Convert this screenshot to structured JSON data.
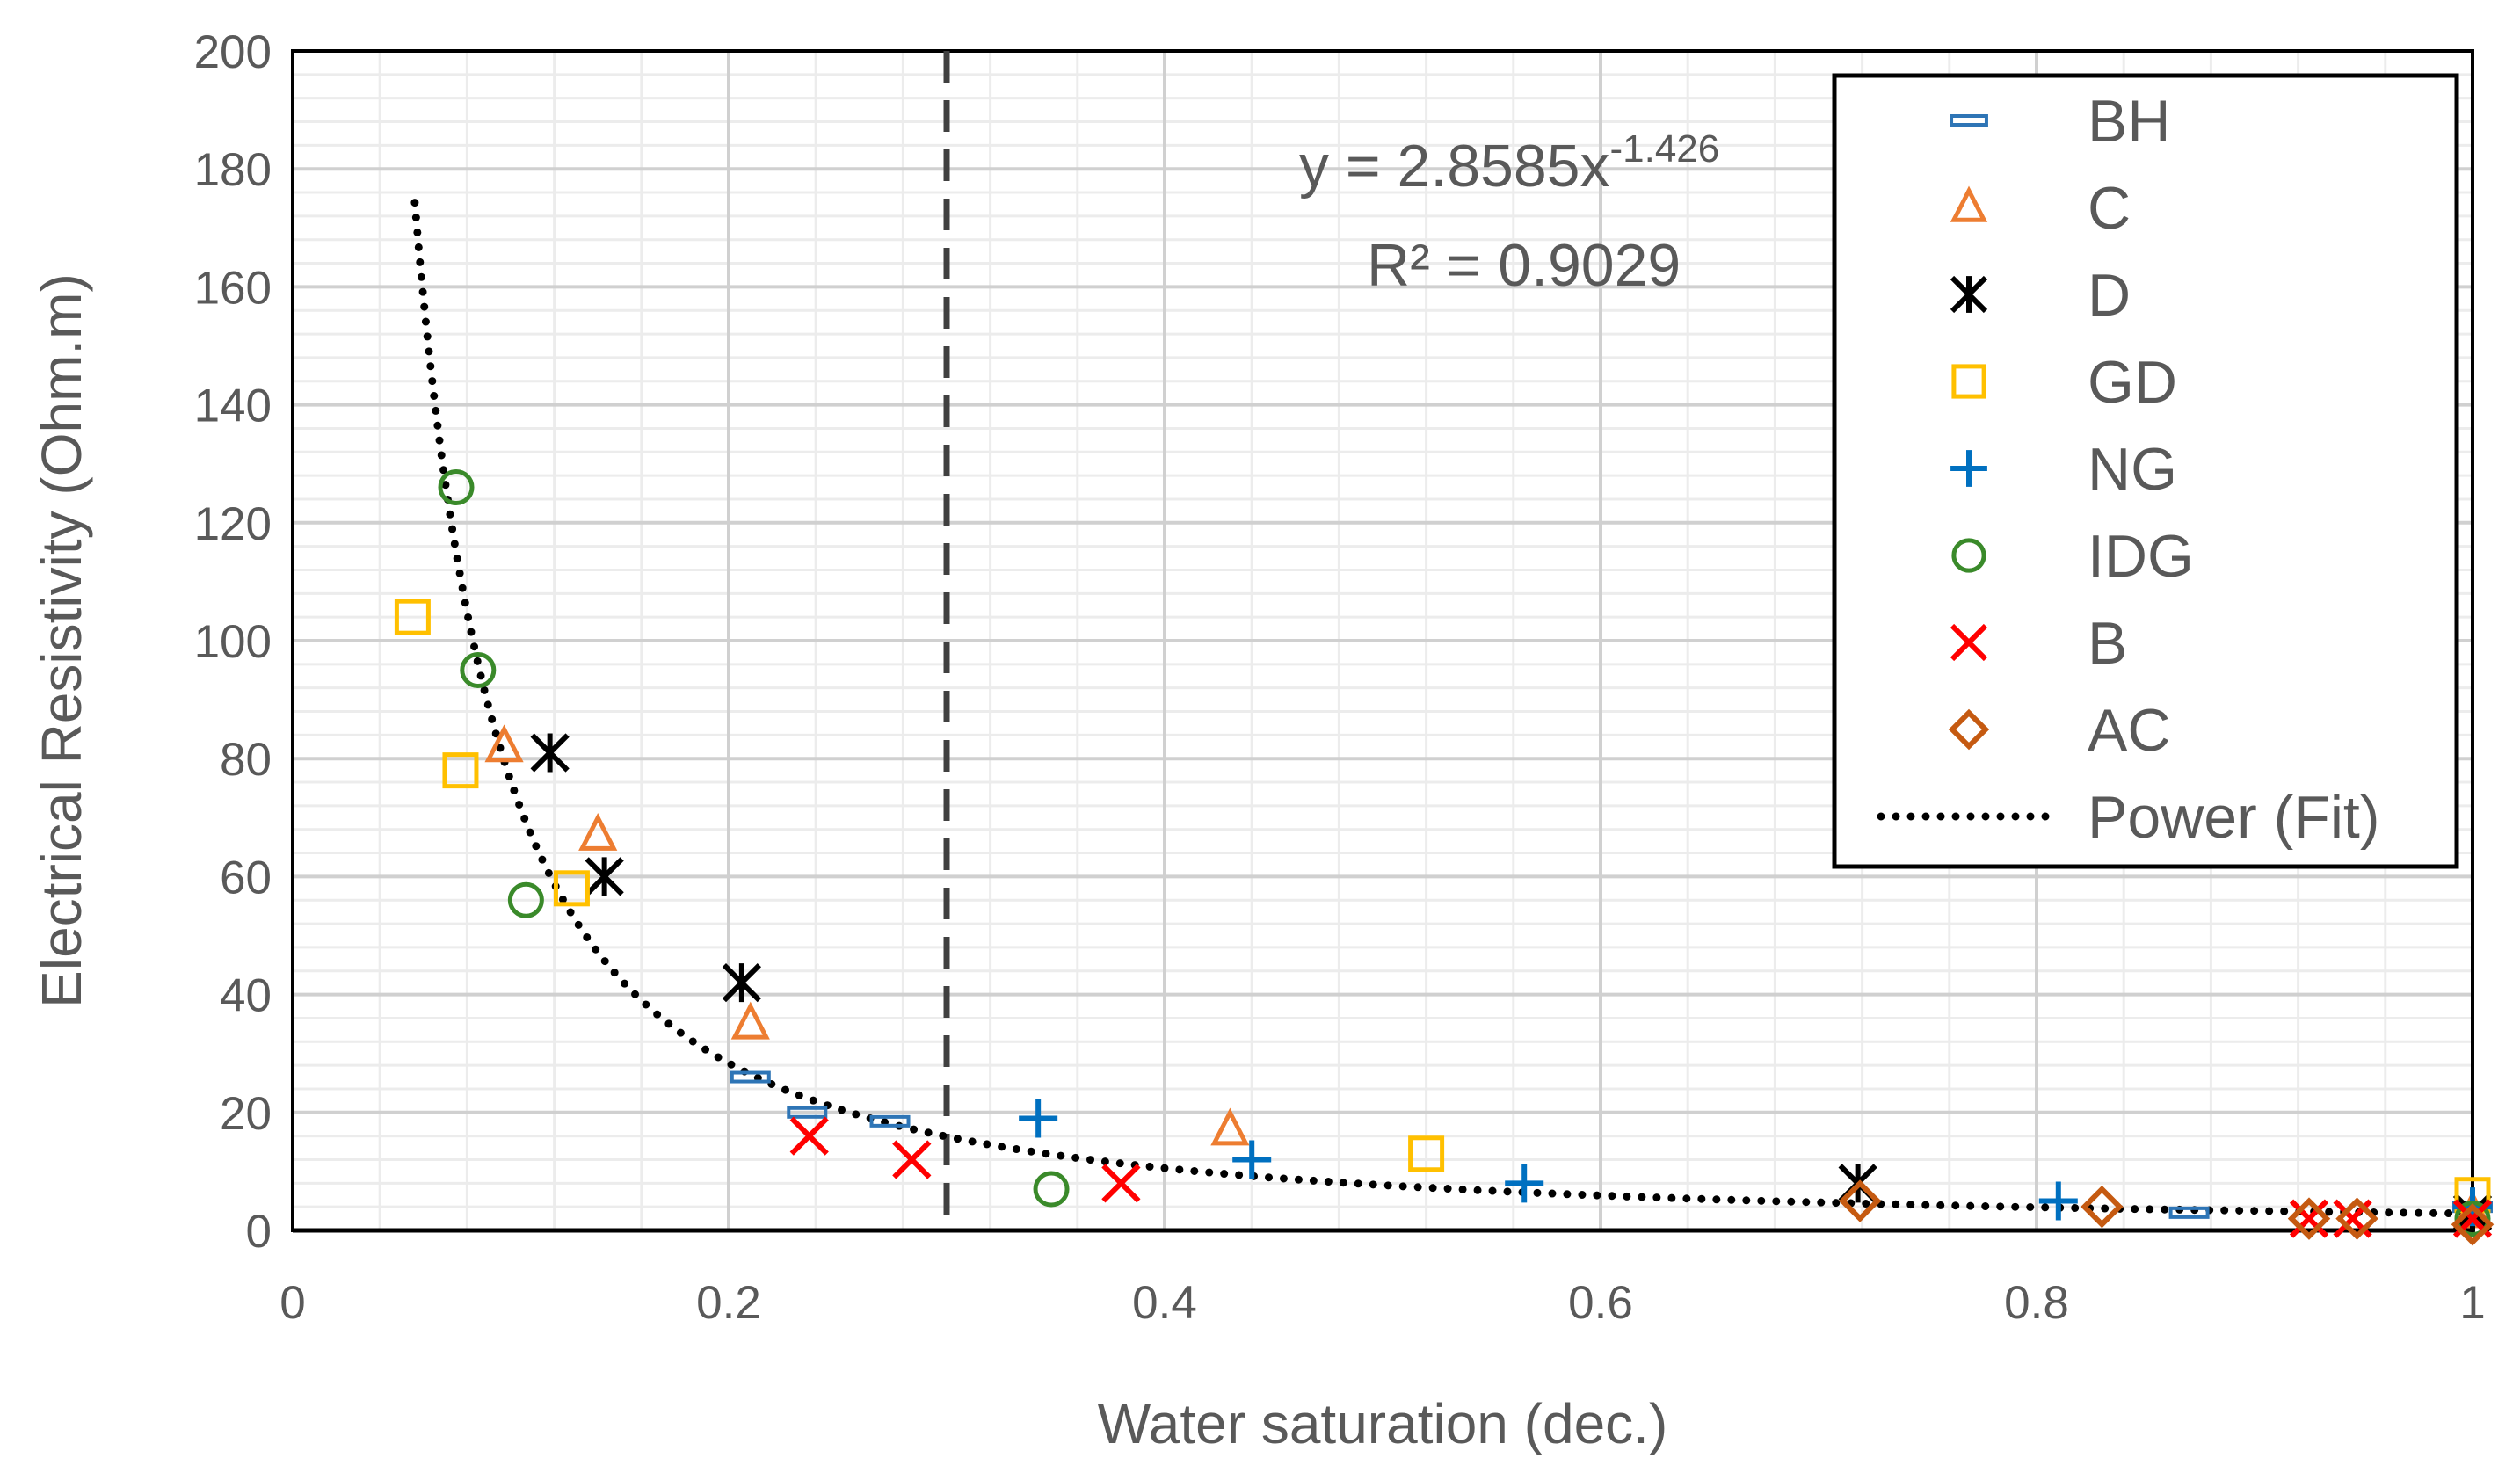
{
  "chart_data": {
    "type": "scatter",
    "title": "",
    "xlabel": "Water saturation (dec.)",
    "ylabel": "Electrical Resistivity (Ohm.m)",
    "xlim": [
      0,
      1
    ],
    "ylim": [
      0,
      200
    ],
    "x_ticks": [
      0,
      0.2,
      0.4,
      0.6,
      0.8,
      1
    ],
    "x_tick_labels": [
      "0",
      "0.2",
      "0.4",
      "0.6",
      "0.8",
      "1"
    ],
    "y_ticks": [
      0,
      20,
      40,
      60,
      80,
      100,
      120,
      140,
      160,
      180,
      200
    ],
    "y_tick_labels": [
      "0",
      "20",
      "40",
      "60",
      "80",
      "100",
      "120",
      "140",
      "160",
      "180",
      "200"
    ],
    "grid": "major and minor",
    "legend_position": "top-right",
    "series": [
      {
        "name": "BH",
        "marker": "dash",
        "color": "#2E75B6",
        "points": [
          [
            0.21,
            26
          ],
          [
            0.236,
            20
          ],
          [
            0.274,
            18.5
          ],
          [
            0.87,
            3
          ],
          [
            1.0,
            4
          ]
        ]
      },
      {
        "name": "C",
        "marker": "triangle",
        "color": "#ED7D31",
        "points": [
          [
            0.097,
            82
          ],
          [
            0.14,
            67
          ],
          [
            0.21,
            35
          ],
          [
            0.43,
            17
          ],
          [
            1.0,
            3
          ]
        ]
      },
      {
        "name": "D",
        "marker": "asterisk",
        "color": "#000000",
        "points": [
          [
            0.118,
            81
          ],
          [
            0.143,
            60
          ],
          [
            0.206,
            42
          ],
          [
            0.718,
            8
          ],
          [
            1.0,
            3
          ]
        ]
      },
      {
        "name": "GD",
        "marker": "square",
        "color": "#FFC000",
        "points": [
          [
            0.055,
            104
          ],
          [
            0.077,
            78
          ],
          [
            0.128,
            58
          ],
          [
            0.52,
            13
          ],
          [
            1.0,
            6
          ]
        ]
      },
      {
        "name": "NG",
        "marker": "plus",
        "color": "#0070C0",
        "points": [
          [
            0.342,
            19
          ],
          [
            0.44,
            12
          ],
          [
            0.565,
            8
          ],
          [
            0.81,
            5
          ],
          [
            1.0,
            4
          ]
        ]
      },
      {
        "name": "IDG",
        "marker": "circle",
        "color": "#3A8A2A",
        "points": [
          [
            0.075,
            126
          ],
          [
            0.085,
            95
          ],
          [
            0.107,
            56
          ],
          [
            0.348,
            7
          ],
          [
            1.0,
            2
          ]
        ]
      },
      {
        "name": "B",
        "marker": "x",
        "color": "#FF0000",
        "points": [
          [
            0.237,
            16
          ],
          [
            0.284,
            12
          ],
          [
            0.38,
            8
          ],
          [
            0.925,
            2
          ],
          [
            0.945,
            2
          ],
          [
            1.0,
            2
          ]
        ]
      },
      {
        "name": "AC",
        "marker": "diamond",
        "color": "#C55A11",
        "points": [
          [
            0.719,
            5
          ],
          [
            0.83,
            4
          ],
          [
            0.925,
            2
          ],
          [
            0.947,
            2
          ],
          [
            1.0,
            1
          ]
        ]
      }
    ],
    "fit": {
      "name": "Power (Fit)",
      "type": "power",
      "a": 2.8585,
      "b": -1.426,
      "x_range": [
        0.056,
        1.0
      ],
      "style": "dotted",
      "color": "#000000",
      "equation_main": "y = 2.8585x",
      "equation_exponent": "-1.426",
      "r_squared_label": "R² = 0.9029"
    },
    "vertical_line": {
      "x": 0.3,
      "style": "dashed",
      "color": "#404040"
    }
  }
}
